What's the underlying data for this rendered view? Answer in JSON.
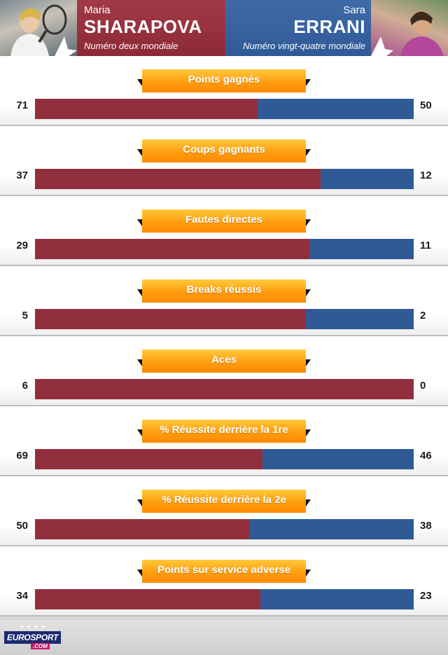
{
  "players": {
    "left": {
      "first_name": "Maria",
      "last_name": "SHARAPOVA",
      "rank": "Numéro deux mondiale",
      "color": "#922f3d"
    },
    "right": {
      "first_name": "Sara",
      "last_name": "ERRANI",
      "rank": "Numéro vingt-quatre mondiale",
      "color": "#2f5a96"
    }
  },
  "label_color": "#ff9d10",
  "stats": [
    {
      "label": "Points gagnés",
      "left": "71",
      "right": "50",
      "left_share": 0.587
    },
    {
      "label": "Coups gagnants",
      "left": "37",
      "right": "12",
      "left_share": 0.755
    },
    {
      "label": "Fautes directes",
      "left": "29",
      "right": "11",
      "left_share": 0.725
    },
    {
      "label": "Breaks réussis",
      "left": "5",
      "right": "2",
      "left_share": 0.714
    },
    {
      "label": "Aces",
      "left": "6",
      "right": "0",
      "left_share": 1.0
    },
    {
      "label": "% Réussite derrière la 1re",
      "left": "69",
      "right": "46",
      "left_share": 0.6
    },
    {
      "label": "% Réussite derrière la 2e",
      "left": "50",
      "right": "38",
      "left_share": 0.568
    },
    {
      "label": "Points sur service adverse",
      "left": "34",
      "right": "23",
      "left_share": 0.596
    }
  ],
  "footer": {
    "logo_main": "EUROSPORT",
    "logo_sub": ".COM",
    "logo_icon": "eurosport-stars-logo"
  }
}
